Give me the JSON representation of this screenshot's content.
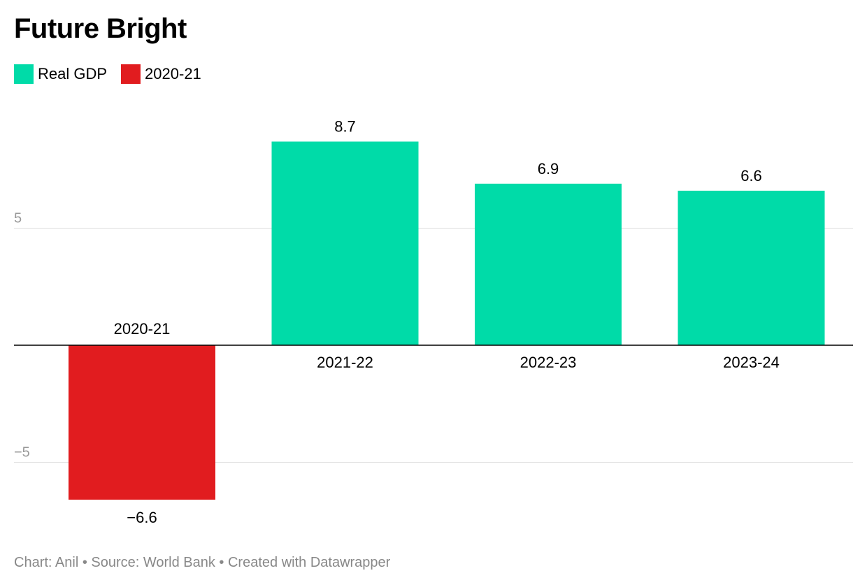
{
  "title": "Future Bright",
  "legend": [
    {
      "label": "Real GDP",
      "color": "#00dba8"
    },
    {
      "label": "2020-21",
      "color": "#e11c1f"
    }
  ],
  "footer": "Chart: Anil • Source: World Bank • Created with Datawrapper",
  "chart_data": {
    "type": "bar",
    "categories": [
      "2020-21",
      "2021-22",
      "2022-23",
      "2023-24"
    ],
    "values": [
      -6.6,
      8.7,
      6.9,
      6.6
    ],
    "value_labels": [
      "−6.6",
      "8.7",
      "6.9",
      "6.6"
    ],
    "bar_colors": [
      "#e11c1f",
      "#00dba8",
      "#00dba8",
      "#00dba8"
    ],
    "yticks": [
      5,
      -5
    ],
    "ytick_labels": [
      "5",
      "−5"
    ],
    "title": "Future Bright",
    "xlabel": "",
    "ylabel": "",
    "grid": true,
    "legend_position": "top-left"
  }
}
